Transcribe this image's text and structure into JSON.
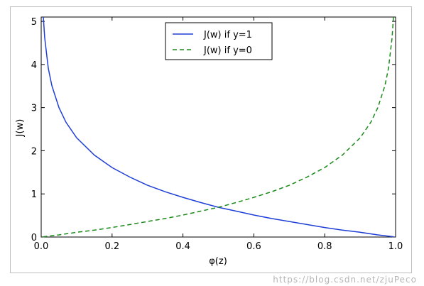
{
  "chart_data": {
    "type": "line",
    "xlabel": "φ(z)",
    "ylabel": "J(w)",
    "xlim": [
      0.0,
      1.0
    ],
    "ylim": [
      0,
      5.1
    ],
    "x_ticks": [
      "0.0",
      "0.2",
      "0.4",
      "0.6",
      "0.8",
      "1.0"
    ],
    "y_ticks": [
      "0",
      "1",
      "2",
      "3",
      "4",
      "5"
    ],
    "grid": false,
    "legend_position": "top-center",
    "series": [
      {
        "name": "J(w) if y=1",
        "style": "solid",
        "color": "#1f3fd6",
        "x": [
          0.006,
          0.01,
          0.02,
          0.03,
          0.05,
          0.07,
          0.1,
          0.15,
          0.2,
          0.25,
          0.3,
          0.35,
          0.4,
          0.45,
          0.5,
          0.55,
          0.6,
          0.65,
          0.7,
          0.75,
          0.8,
          0.85,
          0.9,
          0.95,
          0.99,
          0.995
        ],
        "y": [
          5.12,
          4.61,
          3.91,
          3.51,
          3.0,
          2.66,
          2.3,
          1.9,
          1.61,
          1.39,
          1.2,
          1.05,
          0.92,
          0.8,
          0.69,
          0.6,
          0.51,
          0.43,
          0.36,
          0.29,
          0.22,
          0.16,
          0.11,
          0.05,
          0.01,
          0.005
        ]
      },
      {
        "name": "J(w) if y=0",
        "style": "dashed",
        "color": "#1b8a1b",
        "x": [
          0.005,
          0.01,
          0.05,
          0.1,
          0.15,
          0.2,
          0.25,
          0.3,
          0.35,
          0.4,
          0.45,
          0.5,
          0.55,
          0.6,
          0.65,
          0.7,
          0.75,
          0.8,
          0.85,
          0.9,
          0.93,
          0.95,
          0.97,
          0.98,
          0.99,
          0.994
        ],
        "y": [
          0.005,
          0.01,
          0.05,
          0.11,
          0.16,
          0.22,
          0.29,
          0.36,
          0.43,
          0.51,
          0.6,
          0.69,
          0.8,
          0.92,
          1.05,
          1.2,
          1.39,
          1.61,
          1.9,
          2.3,
          2.66,
          3.0,
          3.51,
          3.91,
          4.61,
          5.12
        ]
      }
    ]
  },
  "watermark": "https://blog.csdn.net/zjuPeco"
}
